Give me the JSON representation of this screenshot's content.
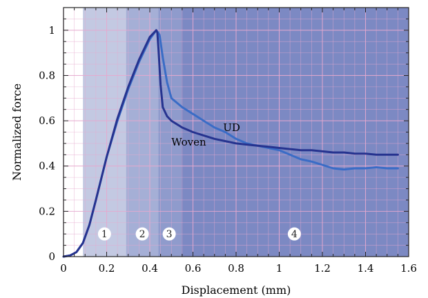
{
  "chart_data": {
    "type": "line",
    "xlabel": "Displacement (mm)",
    "ylabel": "Normalized force",
    "xlim": [
      0,
      1.6
    ],
    "ylim": [
      0,
      1.1
    ],
    "xticks": [
      0,
      0.2,
      0.4,
      0.6,
      0.8,
      1,
      1.2,
      1.4,
      1.6
    ],
    "yticks": [
      0,
      0.2,
      0.4,
      0.6,
      0.8,
      1
    ],
    "xtick_labels": [
      "0",
      "0.2",
      "0.4",
      "0.6",
      "0.8",
      "1",
      "1.2",
      "1.4",
      "1.6"
    ],
    "ytick_labels": [
      "0",
      "0.2",
      "0.4",
      "0.6",
      "0.8",
      "1"
    ],
    "grid": true,
    "regions": [
      {
        "label": "1",
        "x_start": 0.09,
        "x_end": 0.29,
        "color": "#c3c9e2",
        "label_x": 0.19
      },
      {
        "label": "2",
        "x_start": 0.29,
        "x_end": 0.44,
        "color": "#a5afd6",
        "label_x": 0.365
      },
      {
        "label": "3",
        "x_start": 0.44,
        "x_end": 0.545,
        "color": "#8f9bcc",
        "label_x": 0.49
      },
      {
        "label": "4",
        "x_start": 0.545,
        "x_end": 1.6,
        "color": "#7c89c3",
        "label_x": 1.07
      }
    ],
    "region_label_y": 0.1,
    "series": [
      {
        "name": "UD",
        "color": "#3a6cc6",
        "x": [
          0,
          0.03,
          0.06,
          0.09,
          0.12,
          0.15,
          0.2,
          0.25,
          0.3,
          0.35,
          0.4,
          0.43,
          0.445,
          0.46,
          0.48,
          0.5,
          0.55,
          0.6,
          0.65,
          0.7,
          0.75,
          0.8,
          0.85,
          0.9,
          0.95,
          1.0,
          1.05,
          1.1,
          1.15,
          1.2,
          1.25,
          1.3,
          1.35,
          1.4,
          1.45,
          1.5,
          1.55
        ],
        "y": [
          0,
          0.005,
          0.02,
          0.06,
          0.14,
          0.25,
          0.44,
          0.6,
          0.74,
          0.86,
          0.96,
          1.0,
          0.98,
          0.88,
          0.77,
          0.7,
          0.66,
          0.63,
          0.6,
          0.57,
          0.55,
          0.52,
          0.5,
          0.49,
          0.48,
          0.47,
          0.45,
          0.43,
          0.42,
          0.405,
          0.39,
          0.385,
          0.39,
          0.39,
          0.395,
          0.39,
          0.39
        ]
      },
      {
        "name": "Woven",
        "color": "#26338f",
        "x": [
          0,
          0.03,
          0.06,
          0.09,
          0.12,
          0.15,
          0.2,
          0.25,
          0.3,
          0.35,
          0.4,
          0.43,
          0.435,
          0.44,
          0.45,
          0.46,
          0.48,
          0.5,
          0.55,
          0.6,
          0.65,
          0.7,
          0.75,
          0.8,
          0.85,
          0.9,
          0.95,
          1.0,
          1.05,
          1.1,
          1.15,
          1.2,
          1.25,
          1.3,
          1.35,
          1.4,
          1.45,
          1.5,
          1.55
        ],
        "y": [
          0,
          0.005,
          0.02,
          0.06,
          0.14,
          0.25,
          0.44,
          0.61,
          0.75,
          0.87,
          0.97,
          1.0,
          0.99,
          0.92,
          0.76,
          0.66,
          0.62,
          0.6,
          0.57,
          0.55,
          0.535,
          0.52,
          0.51,
          0.5,
          0.495,
          0.49,
          0.485,
          0.48,
          0.475,
          0.47,
          0.47,
          0.465,
          0.46,
          0.46,
          0.455,
          0.455,
          0.45,
          0.45,
          0.45
        ]
      }
    ],
    "annotations": [
      {
        "text": "UD",
        "x": 0.74,
        "y": 0.555
      },
      {
        "text": "Woven",
        "x": 0.5,
        "y": 0.49
      }
    ]
  }
}
